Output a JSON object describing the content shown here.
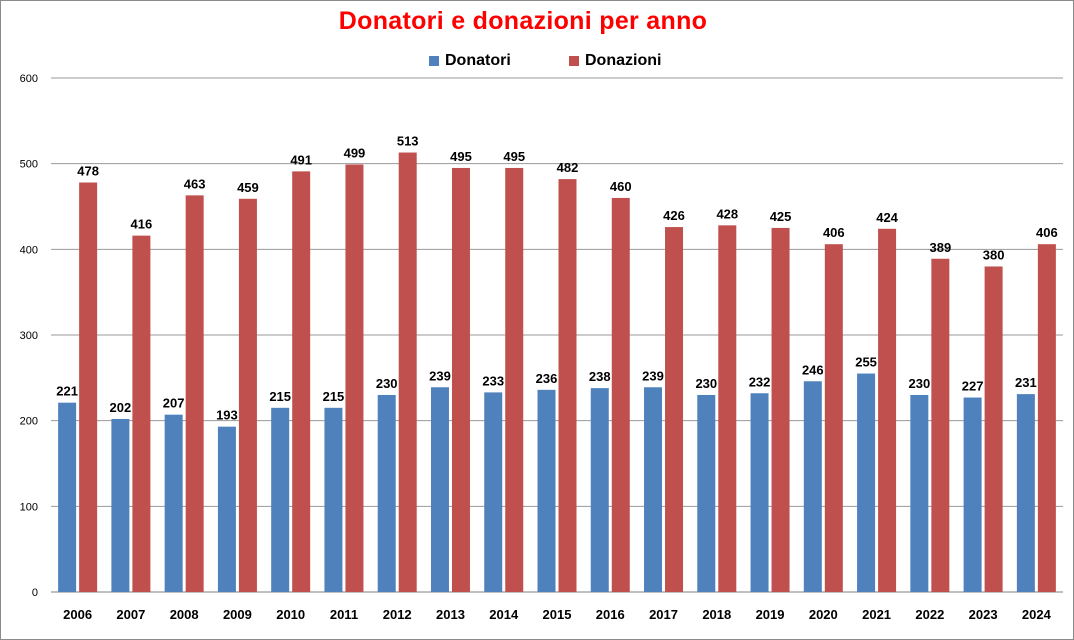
{
  "chart_data": {
    "type": "bar",
    "title": "Donatori e donazioni per anno",
    "categories": [
      "2006",
      "2007",
      "2008",
      "2009",
      "2010",
      "2011",
      "2012",
      "2013",
      "2014",
      "2015",
      "2016",
      "2017",
      "2018",
      "2019",
      "2020",
      "2021",
      "2022",
      "2023",
      "2024"
    ],
    "series": [
      {
        "name": "Donatori",
        "color": "#4f81bd",
        "values": [
          221,
          202,
          207,
          193,
          215,
          215,
          230,
          239,
          233,
          236,
          238,
          239,
          230,
          232,
          246,
          255,
          230,
          227,
          231
        ]
      },
      {
        "name": "Donazioni",
        "color": "#c0504d",
        "values": [
          478,
          416,
          463,
          459,
          491,
          499,
          513,
          495,
          495,
          482,
          460,
          426,
          428,
          425,
          406,
          424,
          389,
          380,
          406
        ]
      }
    ],
    "yticks": [
      0,
      100,
      200,
      300,
      400,
      500,
      600
    ],
    "ylim": [
      0,
      600
    ],
    "grid": true,
    "legend_position": "top",
    "title_color": "#ff0000"
  }
}
